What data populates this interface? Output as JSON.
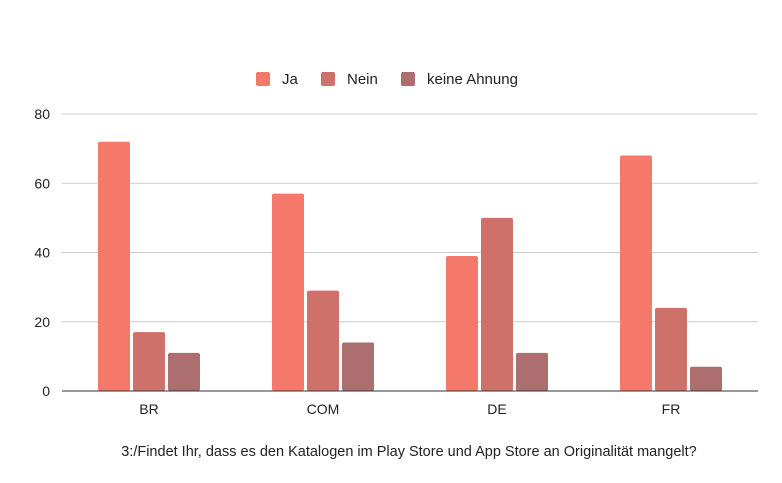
{
  "chart_data": {
    "type": "bar",
    "title": "",
    "xlabel": "3:/Findet Ihr, dass es den Katalogen im Play Store und App Store an Originalität mangelt?",
    "ylabel": "",
    "categories": [
      "BR",
      "COM",
      "DE",
      "FR"
    ],
    "series": [
      {
        "name": "Ja",
        "color": "#f4796a",
        "values": [
          72,
          57,
          39,
          68
        ]
      },
      {
        "name": "Nein",
        "color": "#cf716b",
        "values": [
          17,
          29,
          50,
          24
        ]
      },
      {
        "name": "keine Ahnung",
        "color": "#ac6e6e",
        "values": [
          11,
          14,
          11,
          7
        ]
      }
    ],
    "ylim": [
      0,
      80
    ],
    "yticks": [
      0,
      20,
      40,
      60,
      80
    ],
    "grid": true,
    "legend_position": "top-center"
  }
}
